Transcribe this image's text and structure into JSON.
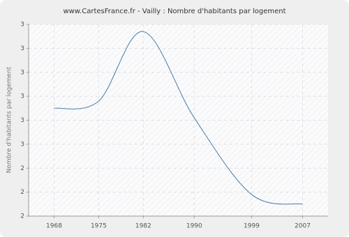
{
  "chart_data": {
    "type": "line",
    "title": "www.CartesFrance.fr - Vailly : Nombre d'habitants par logement",
    "y_label": "Nombre d'habitants par logement",
    "x": [
      1968,
      1975,
      1982,
      1990,
      1999,
      2007
    ],
    "series": [
      {
        "name": "Vailly",
        "color": "#4a7aa7",
        "values": [
          2.65,
          2.68,
          2.97,
          2.61,
          2.29,
          2.25
        ]
      }
    ],
    "xlim": [
      1964,
      2011
    ],
    "xticks": [
      1968,
      1975,
      1982,
      1990,
      1999,
      2007
    ],
    "ylim": [
      2.2,
      3.0
    ],
    "yticks": [
      {
        "value": 2.2,
        "label": "2"
      },
      {
        "value": 2.3,
        "label": "2"
      },
      {
        "value": 2.4,
        "label": "2"
      },
      {
        "value": 2.5,
        "label": "3"
      },
      {
        "value": 2.6,
        "label": "3"
      },
      {
        "value": 2.7,
        "label": "3"
      },
      {
        "value": 2.8,
        "label": "3"
      },
      {
        "value": 2.9,
        "label": "3"
      },
      {
        "value": 3.0,
        "label": "3"
      }
    ],
    "grid": true
  }
}
